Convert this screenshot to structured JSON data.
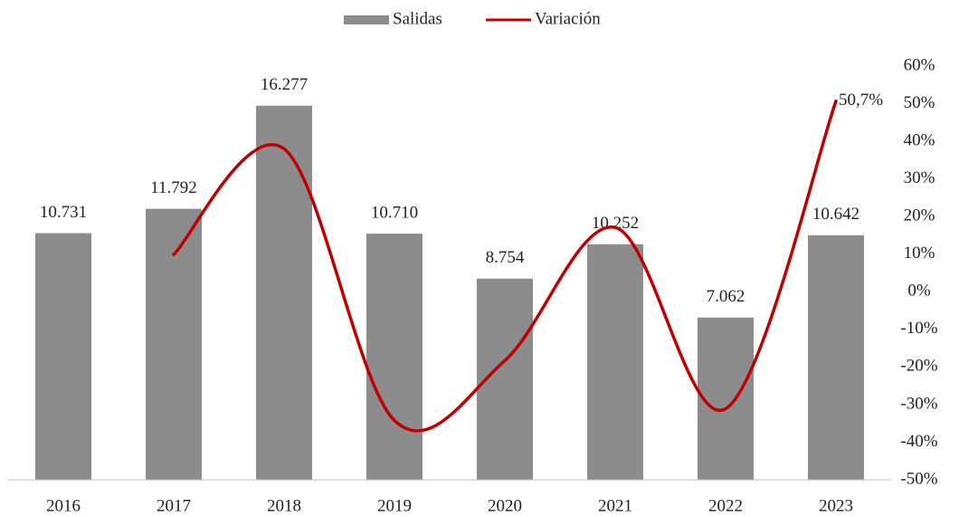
{
  "chart_data": {
    "type": "bar_line",
    "categories": [
      "2016",
      "2017",
      "2018",
      "2019",
      "2020",
      "2021",
      "2022",
      "2023"
    ],
    "series": [
      {
        "name": "Salidas",
        "type": "bar",
        "color": "#8c8c8c",
        "values": [
          10731,
          11792,
          16277,
          10710,
          8754,
          10252,
          7062,
          10642
        ],
        "value_labels": [
          "10.731",
          "11.792",
          "16.277",
          "10.710",
          "8.754",
          "10.252",
          "7.062",
          "10.642"
        ]
      },
      {
        "name": "Variación",
        "type": "line",
        "color": "#c00000",
        "axis": "y2",
        "smooth": true,
        "values": [
          null,
          9.9,
          38.0,
          -34.2,
          -18.3,
          17.1,
          -31.1,
          50.7
        ],
        "value_labels": [
          null,
          null,
          null,
          null,
          null,
          null,
          null,
          "50,7%"
        ]
      }
    ],
    "ylim": [
      0,
      18000
    ],
    "y2lim": [
      -50,
      60
    ],
    "y2ticks": [
      {
        "value": 60,
        "label": "60%"
      },
      {
        "value": 50,
        "label": "50%"
      },
      {
        "value": 40,
        "label": "40%"
      },
      {
        "value": 30,
        "label": "30%"
      },
      {
        "value": 20,
        "label": "20%"
      },
      {
        "value": 10,
        "label": "10%"
      },
      {
        "value": 0,
        "label": "0%"
      },
      {
        "value": -10,
        "label": "-10%"
      },
      {
        "value": -20,
        "label": "-20%"
      },
      {
        "value": -30,
        "label": "-30%"
      },
      {
        "value": -40,
        "label": "-40%"
      },
      {
        "value": -50,
        "label": "-50%"
      }
    ],
    "legend": "top"
  }
}
